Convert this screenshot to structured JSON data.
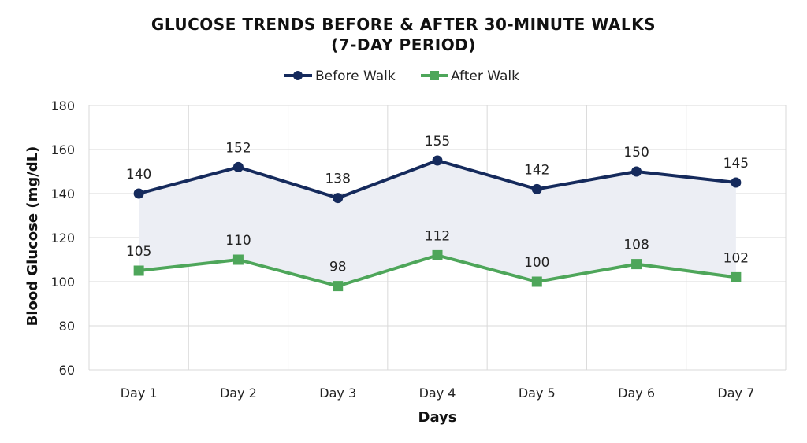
{
  "chart_data": {
    "type": "line",
    "title": "GLUCOSE TRENDS BEFORE & AFTER 30-MINUTE WALKS",
    "subtitle": "(7-DAY PERIOD)",
    "xlabel": "Days",
    "ylabel": "Blood Glucose (mg/dL)",
    "categories": [
      "Day 1",
      "Day 2",
      "Day 3",
      "Day 4",
      "Day 5",
      "Day 6",
      "Day 7"
    ],
    "ylim": [
      60,
      180
    ],
    "yticks": [
      60,
      80,
      100,
      120,
      140,
      160,
      180
    ],
    "grid": true,
    "legend_position": "top",
    "shaded_between_series": true,
    "shade_color": "#eceef4",
    "series": [
      {
        "name": "Before Walk",
        "values": [
          140,
          152,
          138,
          155,
          142,
          150,
          145
        ],
        "color": "#152a5c",
        "marker": "circle"
      },
      {
        "name": "After Walk",
        "values": [
          105,
          110,
          98,
          112,
          100,
          108,
          102
        ],
        "color": "#4ea65a",
        "marker": "square"
      }
    ]
  }
}
